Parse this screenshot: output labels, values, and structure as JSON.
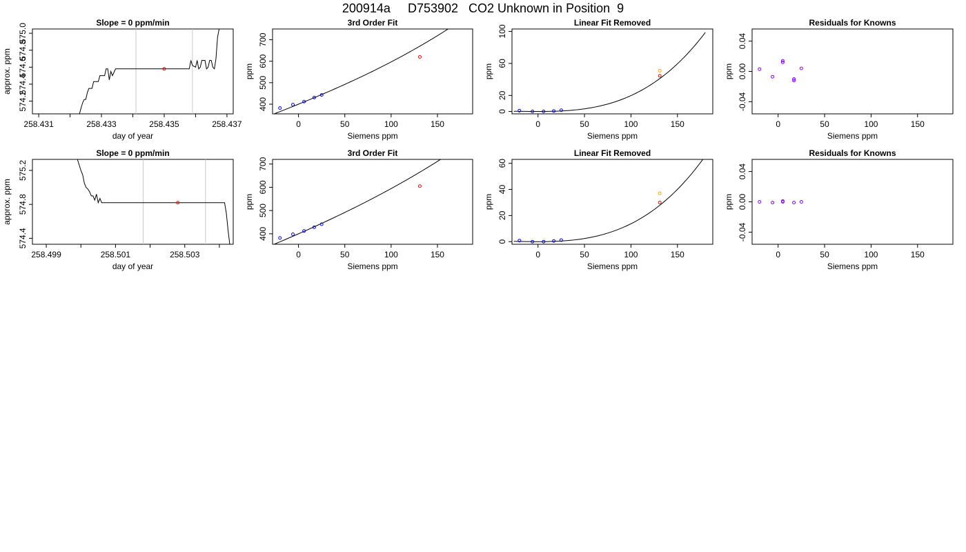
{
  "figure": {
    "title": "200914a     D753902   CO2 Unknown in Position  9"
  },
  "colors": {
    "curve": "#000000",
    "unknown_point": "#ff0000",
    "known_point": "#0000ff",
    "residual_point": "#8000ff",
    "uncorrected_point": "#ffa500",
    "vline": "#c8c8c8",
    "frame": "#000000"
  },
  "chart_data": [
    {
      "id": "r1c1",
      "type": "line",
      "title": "Slope =  0  ppm/min",
      "xlabel": "day of year",
      "ylabel": "approx. ppm",
      "xlim": [
        258.4308,
        258.4372
      ],
      "ylim": [
        574.05,
        575.05
      ],
      "xticks": [
        258.431,
        258.432,
        258.433,
        258.434,
        258.435,
        258.436,
        258.437
      ],
      "xtick_labels": [
        "258.431",
        "",
        "258.433",
        "",
        "258.435",
        "",
        "258.437"
      ],
      "yticks": [
        574.2,
        574.4,
        574.6,
        574.8,
        575.0
      ],
      "ytick_labels": [
        "574.2",
        "574.4",
        "574.6",
        "574.8",
        "575.0"
      ],
      "vlines": [
        258.4341,
        258.4359
      ],
      "trace": [
        [
          258.4323,
          574.05
        ],
        [
          258.43235,
          574.12
        ],
        [
          258.4324,
          574.18
        ],
        [
          258.43245,
          574.22
        ],
        [
          258.4325,
          574.22
        ],
        [
          258.43255,
          574.3
        ],
        [
          258.4326,
          574.35
        ],
        [
          258.4327,
          574.35
        ],
        [
          258.43275,
          574.43
        ],
        [
          258.4329,
          574.43
        ],
        [
          258.43295,
          574.5
        ],
        [
          258.4331,
          574.5
        ],
        [
          258.43315,
          574.58
        ],
        [
          258.4332,
          574.58
        ],
        [
          258.43325,
          574.45
        ],
        [
          258.4333,
          574.55
        ],
        [
          258.43335,
          574.5
        ],
        [
          258.43345,
          574.58
        ],
        [
          258.4358,
          574.58
        ],
        [
          258.43585,
          574.68
        ],
        [
          258.4359,
          574.62
        ],
        [
          258.436,
          574.6
        ],
        [
          258.43605,
          574.68
        ],
        [
          258.4361,
          574.58
        ],
        [
          258.43615,
          574.6
        ],
        [
          258.4362,
          574.68
        ],
        [
          258.4363,
          574.68
        ],
        [
          258.43635,
          574.58
        ],
        [
          258.4364,
          574.6
        ],
        [
          258.43645,
          574.68
        ],
        [
          258.4365,
          574.68
        ],
        [
          258.43655,
          574.6
        ],
        [
          258.4366,
          574.58
        ],
        [
          258.43665,
          574.7
        ],
        [
          258.4367,
          574.95
        ],
        [
          258.43675,
          575.05
        ]
      ],
      "points": [
        {
          "x": 258.435,
          "y": 574.58,
          "role": "unknown"
        }
      ]
    },
    {
      "id": "r1c2",
      "type": "scatter",
      "title": "3rd Order Fit",
      "xlabel": "Siemens ppm",
      "ylabel": "ppm",
      "xlim": [
        -28,
        188
      ],
      "ylim": [
        355,
        750
      ],
      "xticks": [
        0,
        50,
        100,
        150
      ],
      "xtick_labels": [
        "0",
        "50",
        "100",
        "150"
      ],
      "yticks": [
        400,
        500,
        600,
        700
      ],
      "ytick_labels": [
        "400",
        "500",
        "600",
        "700"
      ],
      "curve_x": [
        -26,
        180
      ],
      "curve": {
        "coefs": [
          400.0,
          1.75,
          0.0015,
          6.7e-06
        ]
      },
      "points": [
        {
          "x": -20,
          "y": 382,
          "role": "known"
        },
        {
          "x": -6,
          "y": 398,
          "role": "known"
        },
        {
          "x": 6,
          "y": 412,
          "role": "known"
        },
        {
          "x": 17,
          "y": 431,
          "role": "known"
        },
        {
          "x": 25,
          "y": 443,
          "role": "known"
        },
        {
          "x": 131,
          "y": 620,
          "role": "unknown"
        }
      ]
    },
    {
      "id": "r1c3",
      "type": "scatter",
      "title": "Linear Fit Removed",
      "xlabel": "Siemens ppm",
      "ylabel": "ppm",
      "xlim": [
        -28,
        188
      ],
      "ylim": [
        -3,
        103
      ],
      "xticks": [
        0,
        50,
        100,
        150
      ],
      "xtick_labels": [
        "0",
        "50",
        "100",
        "150"
      ],
      "yticks": [
        0,
        20,
        60,
        100
      ],
      "ytick_labels": [
        "0",
        "20",
        "60",
        "100"
      ],
      "curve_x": [
        -26,
        180
      ],
      "curve": {
        "coefs": [
          0,
          0,
          0.00065,
          1.33e-05
        ]
      },
      "points": [
        {
          "x": -20,
          "y": 1,
          "role": "known"
        },
        {
          "x": -6,
          "y": 0,
          "role": "known"
        },
        {
          "x": 6,
          "y": 0,
          "role": "known"
        },
        {
          "x": 17,
          "y": 0.5,
          "role": "known"
        },
        {
          "x": 25,
          "y": 1.5,
          "role": "known"
        },
        {
          "x": 131,
          "y": 51,
          "role": "uncorrected"
        },
        {
          "x": 131,
          "y": 44.5,
          "role": "unknown"
        }
      ]
    },
    {
      "id": "r1c4",
      "type": "scatter",
      "title": "Residuals for Knowns",
      "xlabel": "Siemens ppm",
      "ylabel": "ppm",
      "xlim": [
        -28,
        188
      ],
      "ylim": [
        -0.056,
        0.056
      ],
      "xticks": [
        0,
        50,
        100,
        150
      ],
      "xtick_labels": [
        "0",
        "50",
        "100",
        "150"
      ],
      "yticks": [
        -0.04,
        0.0,
        0.04
      ],
      "ytick_labels": [
        "-0.04",
        "0.00",
        "0.04"
      ],
      "points": [
        {
          "x": -20,
          "y": 0.003,
          "role": "residual"
        },
        {
          "x": -6,
          "y": -0.007,
          "role": "residual"
        },
        {
          "x": 5,
          "y": 0.012,
          "role": "residual"
        },
        {
          "x": 5,
          "y": 0.014,
          "role": "residual"
        },
        {
          "x": 17,
          "y": -0.01,
          "role": "residual"
        },
        {
          "x": 17,
          "y": -0.012,
          "role": "residual"
        },
        {
          "x": 25,
          "y": 0.004,
          "role": "residual"
        }
      ]
    },
    {
      "id": "r2c1",
      "type": "line",
      "title": "Slope =  0  ppm/min",
      "xlabel": "day of year",
      "ylabel": "approx. ppm",
      "xlim": [
        258.4986,
        258.5044
      ],
      "ylim": [
        574.33,
        575.33
      ],
      "xticks": [
        258.499,
        258.5,
        258.501,
        258.502,
        258.503,
        258.504
      ],
      "xtick_labels": [
        "258.499",
        "",
        "258.501",
        "",
        "258.503",
        ""
      ],
      "yticks": [
        574.4,
        574.8,
        575.2
      ],
      "ytick_labels": [
        "574.4",
        "574.8",
        "575.2"
      ],
      "vlines": [
        258.5018,
        258.5036
      ],
      "trace": [
        [
          258.4999,
          575.33
        ],
        [
          258.5,
          575.2
        ],
        [
          258.50005,
          575.15
        ],
        [
          258.5001,
          575.05
        ],
        [
          258.50015,
          575.0
        ],
        [
          258.5002,
          574.98
        ],
        [
          258.50025,
          574.95
        ],
        [
          258.5003,
          574.9
        ],
        [
          258.50035,
          574.9
        ],
        [
          258.5004,
          574.85
        ],
        [
          258.50045,
          574.92
        ],
        [
          258.5005,
          574.82
        ],
        [
          258.50055,
          574.87
        ],
        [
          258.5006,
          574.82
        ],
        [
          258.50415,
          574.82
        ],
        [
          258.5042,
          574.7
        ],
        [
          258.50425,
          574.5
        ],
        [
          258.5043,
          574.33
        ]
      ],
      "points": [
        {
          "x": 258.5028,
          "y": 574.82,
          "role": "unknown"
        }
      ]
    },
    {
      "id": "r2c2",
      "type": "scatter",
      "title": "3rd Order Fit",
      "xlabel": "Siemens ppm",
      "ylabel": "ppm",
      "xlim": [
        -28,
        188
      ],
      "ylim": [
        355,
        720
      ],
      "xticks": [
        0,
        50,
        100,
        150
      ],
      "xtick_labels": [
        "0",
        "50",
        "100",
        "150"
      ],
      "yticks": [
        400,
        500,
        600,
        700
      ],
      "ytick_labels": [
        "400",
        "500",
        "600",
        "700"
      ],
      "curve_x": [
        -26,
        180
      ],
      "curve": {
        "coefs": [
          400.0,
          1.75,
          0.0015,
          4.5e-06
        ]
      },
      "points": [
        {
          "x": -20,
          "y": 382,
          "role": "known"
        },
        {
          "x": -6,
          "y": 398,
          "role": "known"
        },
        {
          "x": 6,
          "y": 412,
          "role": "known"
        },
        {
          "x": 17,
          "y": 428,
          "role": "known"
        },
        {
          "x": 25,
          "y": 441,
          "role": "known"
        },
        {
          "x": 131,
          "y": 605,
          "role": "unknown"
        }
      ]
    },
    {
      "id": "r2c3",
      "type": "scatter",
      "title": "Linear Fit Removed",
      "xlabel": "Siemens ppm",
      "ylabel": "ppm",
      "xlim": [
        -28,
        188
      ],
      "ylim": [
        -2,
        63
      ],
      "xticks": [
        0,
        50,
        100,
        150
      ],
      "xtick_labels": [
        "0",
        "50",
        "100",
        "150"
      ],
      "yticks": [
        0,
        20,
        40,
        60
      ],
      "ytick_labels": [
        "0",
        "20",
        "40",
        "60"
      ],
      "curve_x": [
        -26,
        180
      ],
      "curve": {
        "coefs": [
          0,
          0,
          0.00055,
          8.2e-06
        ]
      },
      "points": [
        {
          "x": -20,
          "y": 0.8,
          "role": "known"
        },
        {
          "x": -6,
          "y": 0,
          "role": "known"
        },
        {
          "x": 6,
          "y": 0,
          "role": "known"
        },
        {
          "x": 17,
          "y": 0.5,
          "role": "known"
        },
        {
          "x": 25,
          "y": 1.2,
          "role": "known"
        },
        {
          "x": 131,
          "y": 37,
          "role": "uncorrected"
        },
        {
          "x": 131,
          "y": 30,
          "role": "unknown"
        }
      ]
    },
    {
      "id": "r2c4",
      "type": "scatter",
      "title": "Residuals for Knowns",
      "xlabel": "Siemens ppm",
      "ylabel": "ppm",
      "xlim": [
        -28,
        188
      ],
      "ylim": [
        -0.056,
        0.056
      ],
      "xticks": [
        0,
        50,
        100,
        150
      ],
      "xtick_labels": [
        "0",
        "50",
        "100",
        "150"
      ],
      "yticks": [
        -0.04,
        0.0,
        0.04
      ],
      "ytick_labels": [
        "-0.04",
        "0.00",
        "0.04"
      ],
      "points": [
        {
          "x": -20,
          "y": 0.0,
          "role": "residual"
        },
        {
          "x": -6,
          "y": -0.001,
          "role": "residual"
        },
        {
          "x": 5,
          "y": 0.001,
          "role": "residual"
        },
        {
          "x": 5,
          "y": 0.0,
          "role": "residual"
        },
        {
          "x": 17,
          "y": -0.001,
          "role": "residual"
        },
        {
          "x": 25,
          "y": 0.0,
          "role": "residual"
        }
      ]
    }
  ]
}
